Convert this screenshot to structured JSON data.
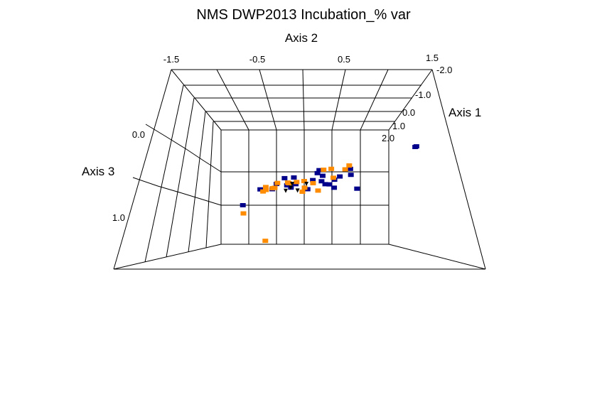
{
  "chart_data": {
    "type": "scatter",
    "title": "NMS DWP2013 Incubation_% var",
    "axes": {
      "axis1": {
        "label": "Axis 1",
        "ticks": [
          "-2.0",
          "-1.0",
          "0.0",
          "1.0",
          "2.0"
        ],
        "range": [
          -2.0,
          2.0
        ]
      },
      "axis2": {
        "label": "Axis 2",
        "ticks": [
          "-1.5",
          "-0.5",
          "0.5",
          "1.5"
        ],
        "range": [
          -1.5,
          1.5
        ]
      },
      "axis3": {
        "label": "Axis 3",
        "ticks": [
          "0.0",
          "1.0"
        ],
        "range": [
          -0.3,
          1.3
        ]
      }
    },
    "grid": true,
    "series": [
      {
        "color": "#00008b",
        "marker": "square",
        "points": [
          [
            -0.1,
            -1.1,
            0.8
          ],
          [
            0.01,
            0.06,
            0.45
          ],
          [
            0.3,
            0.52,
            0.57
          ],
          [
            0.2,
            0.94,
            0.54
          ],
          [
            0.5,
            0.24,
            0.23
          ],
          [
            0.35,
            0.62,
            0.31
          ],
          [
            -0.1,
            -0.18,
            0.09
          ],
          [
            1.9,
            1.88,
            0.4
          ],
          [
            1.93,
            1.9,
            0.4
          ],
          [
            0.2,
            0.44,
            0.43
          ],
          [
            0.2,
            0.3,
            0.35
          ],
          [
            0.5,
            0.81,
            0.35
          ],
          [
            0.3,
            0.36,
            0.48
          ],
          [
            0.4,
            0.52,
            0.42
          ],
          [
            0.1,
            -0.16,
            0.37
          ],
          [
            0.4,
            -0.38,
            0.38
          ],
          [
            0.6,
            0.2,
            0.36
          ],
          [
            0.2,
            0.32,
            0.21
          ],
          [
            -0.2,
            -0.78,
            0.34
          ],
          [
            -0.1,
            -0.57,
            0.39
          ],
          [
            0.3,
            -0.33,
            0.51
          ],
          [
            0.0,
            -0.5,
            0.31
          ],
          [
            0.8,
            0.78,
            0.36
          ],
          [
            0.4,
            0.13,
            0.43
          ],
          [
            -0.3,
            -0.22,
            0.24
          ]
        ]
      },
      {
        "color": "#ff8c00",
        "marker": "square",
        "points": [
          [
            -0.1,
            -1.09,
            1.01
          ],
          [
            0.1,
            -0.49,
            0.34
          ],
          [
            0.3,
            -0.02,
            0.4
          ],
          [
            -0.1,
            -0.29,
            0.22
          ],
          [
            -0.2,
            -0.52,
            0.3
          ],
          [
            0.0,
            0.25,
            0.48
          ],
          [
            0.0,
            0.16,
            0.29
          ],
          [
            0.3,
            0.33,
            0.11
          ],
          [
            -0.2,
            -0.56,
            0.31
          ],
          [
            0.2,
            -0.29,
            0.4
          ],
          [
            0.2,
            -0.15,
            0.37
          ],
          [
            0.1,
            0.0,
            0.46
          ],
          [
            -0.3,
            -0.67,
            0.3
          ],
          [
            -0.8,
            -0.65,
            1.33
          ],
          [
            -0.2,
            -0.68,
            0.28
          ],
          [
            -0.5,
            -0.71,
            0.23
          ],
          [
            0.4,
            0.5,
            0.37
          ],
          [
            0.6,
            0.45,
            0.25
          ],
          [
            0.3,
            0.72,
            0.1
          ],
          [
            0.5,
            0.78,
            0.11
          ],
          [
            -0.2,
            -0.02,
            0.4
          ]
        ]
      },
      {
        "color": "#000000",
        "marker": "triangle-down",
        "points": [
          [
            -0.05,
            -0.24,
            0.38
          ],
          [
            0.15,
            0.03,
            0.39
          ],
          [
            0.0,
            -0.12,
            0.48
          ],
          [
            0.2,
            -0.23,
            0.42
          ],
          [
            -0.05,
            -0.33,
            0.46
          ]
        ]
      }
    ]
  }
}
